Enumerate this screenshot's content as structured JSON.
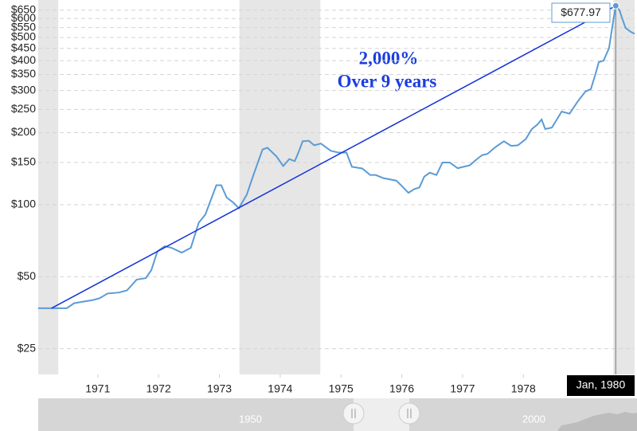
{
  "chart_data": {
    "type": "line",
    "x": [
      1970.52,
      1970.67,
      1970.99,
      1971.11,
      1971.26,
      1971.42,
      1971.53,
      1971.66,
      1971.85,
      1971.98,
      1972.14,
      1972.29,
      1972.38,
      1972.48,
      1972.6,
      1972.71,
      1972.88,
      1973.03,
      1973.16,
      1973.27,
      1973.45,
      1973.53,
      1973.62,
      1973.73,
      1973.82,
      1973.95,
      1974.06,
      1974.21,
      1974.29,
      1974.44,
      1974.55,
      1974.65,
      1974.74,
      1974.8,
      1974.87,
      1974.97,
      1975.06,
      1975.17,
      1975.33,
      1975.46,
      1975.59,
      1975.68,
      1975.85,
      1975.98,
      1976.07,
      1976.2,
      1976.41,
      1976.51,
      1976.61,
      1976.7,
      1976.79,
      1976.87,
      1976.96,
      1977.07,
      1977.17,
      1977.29,
      1977.42,
      1977.62,
      1977.71,
      1977.82,
      1977.91,
      1978.04,
      1978.18,
      1978.3,
      1978.41,
      1978.54,
      1978.64,
      1978.73,
      1978.8,
      1978.86,
      1978.97,
      1979.13,
      1979.26,
      1979.39,
      1979.52,
      1979.61,
      1979.69,
      1979.74,
      1979.82,
      1979.91,
      1979.98,
      1980.02,
      1980.08,
      1980.18,
      1980.27,
      1980.33
    ],
    "values": [
      36.9,
      36.9,
      36.9,
      38.7,
      39.3,
      39.9,
      40.6,
      42.5,
      42.9,
      43.8,
      48.6,
      49.3,
      53.2,
      63.7,
      67,
      66,
      63,
      66,
      84,
      91,
      120.5,
      120.5,
      107,
      102,
      96.6,
      110,
      133,
      170,
      173,
      159,
      145,
      155,
      152,
      165,
      184,
      185,
      177,
      180,
      168,
      165,
      165,
      144,
      141.6,
      133,
      133,
      129,
      126,
      119,
      112,
      116,
      118,
      131,
      136,
      133,
      150,
      150,
      142,
      146,
      153,
      161,
      163,
      174,
      184,
      176,
      177,
      188,
      207,
      216,
      227,
      207,
      210,
      245,
      240,
      269,
      297,
      304,
      354,
      394,
      400,
      452,
      591,
      677.97,
      650,
      548,
      527,
      518
    ],
    "color": "#5b9bd5",
    "log_scale": true,
    "grid": true,
    "xlim": [
      1970.52,
      1980.33
    ],
    "xticks": [
      {
        "value": 1971.5,
        "label": "1971"
      },
      {
        "value": 1972.5,
        "label": "1972"
      },
      {
        "value": 1973.5,
        "label": "1973"
      },
      {
        "value": 1974.5,
        "label": "1974"
      },
      {
        "value": 1975.5,
        "label": "1975"
      },
      {
        "value": 1976.5,
        "label": "1976"
      },
      {
        "value": 1977.5,
        "label": "1977"
      },
      {
        "value": 1978.5,
        "label": "1978"
      }
    ],
    "ylim": [
      19.5,
      690
    ],
    "yticks": [
      {
        "value": 25,
        "label": "$25"
      },
      {
        "value": 50,
        "label": "$50"
      },
      {
        "value": 100,
        "label": "$100"
      },
      {
        "value": 150,
        "label": "$150"
      },
      {
        "value": 200,
        "label": "$200"
      },
      {
        "value": 250,
        "label": "$250"
      },
      {
        "value": 300,
        "label": "$300"
      },
      {
        "value": 350,
        "label": "$350"
      },
      {
        "value": 400,
        "label": "$400"
      },
      {
        "value": 450,
        "label": "$450"
      },
      {
        "value": 500,
        "label": "$500"
      },
      {
        "value": 550,
        "label": "$550"
      },
      {
        "value": 600,
        "label": "$600"
      },
      {
        "value": 650,
        "label": "$650"
      }
    ],
    "shaded": [
      [
        1970.52,
        1970.85
      ],
      [
        1973.83,
        1975.16
      ],
      [
        1979.98,
        1980.33
      ]
    ],
    "shade_color": "#e6e6e6",
    "trend": {
      "x": [
        1970.74,
        1980.02
      ],
      "values": [
        36.9,
        677.97
      ],
      "color": "#1030d8"
    },
    "annotations": [
      "2,000%",
      "Over 9 years"
    ],
    "tooltip": {
      "x": 1980.02,
      "x_label": "Jan, 1980",
      "value": 677.97,
      "value_label": "$677.97"
    },
    "navigator": {
      "labels": [
        "1950",
        "2000"
      ]
    }
  }
}
